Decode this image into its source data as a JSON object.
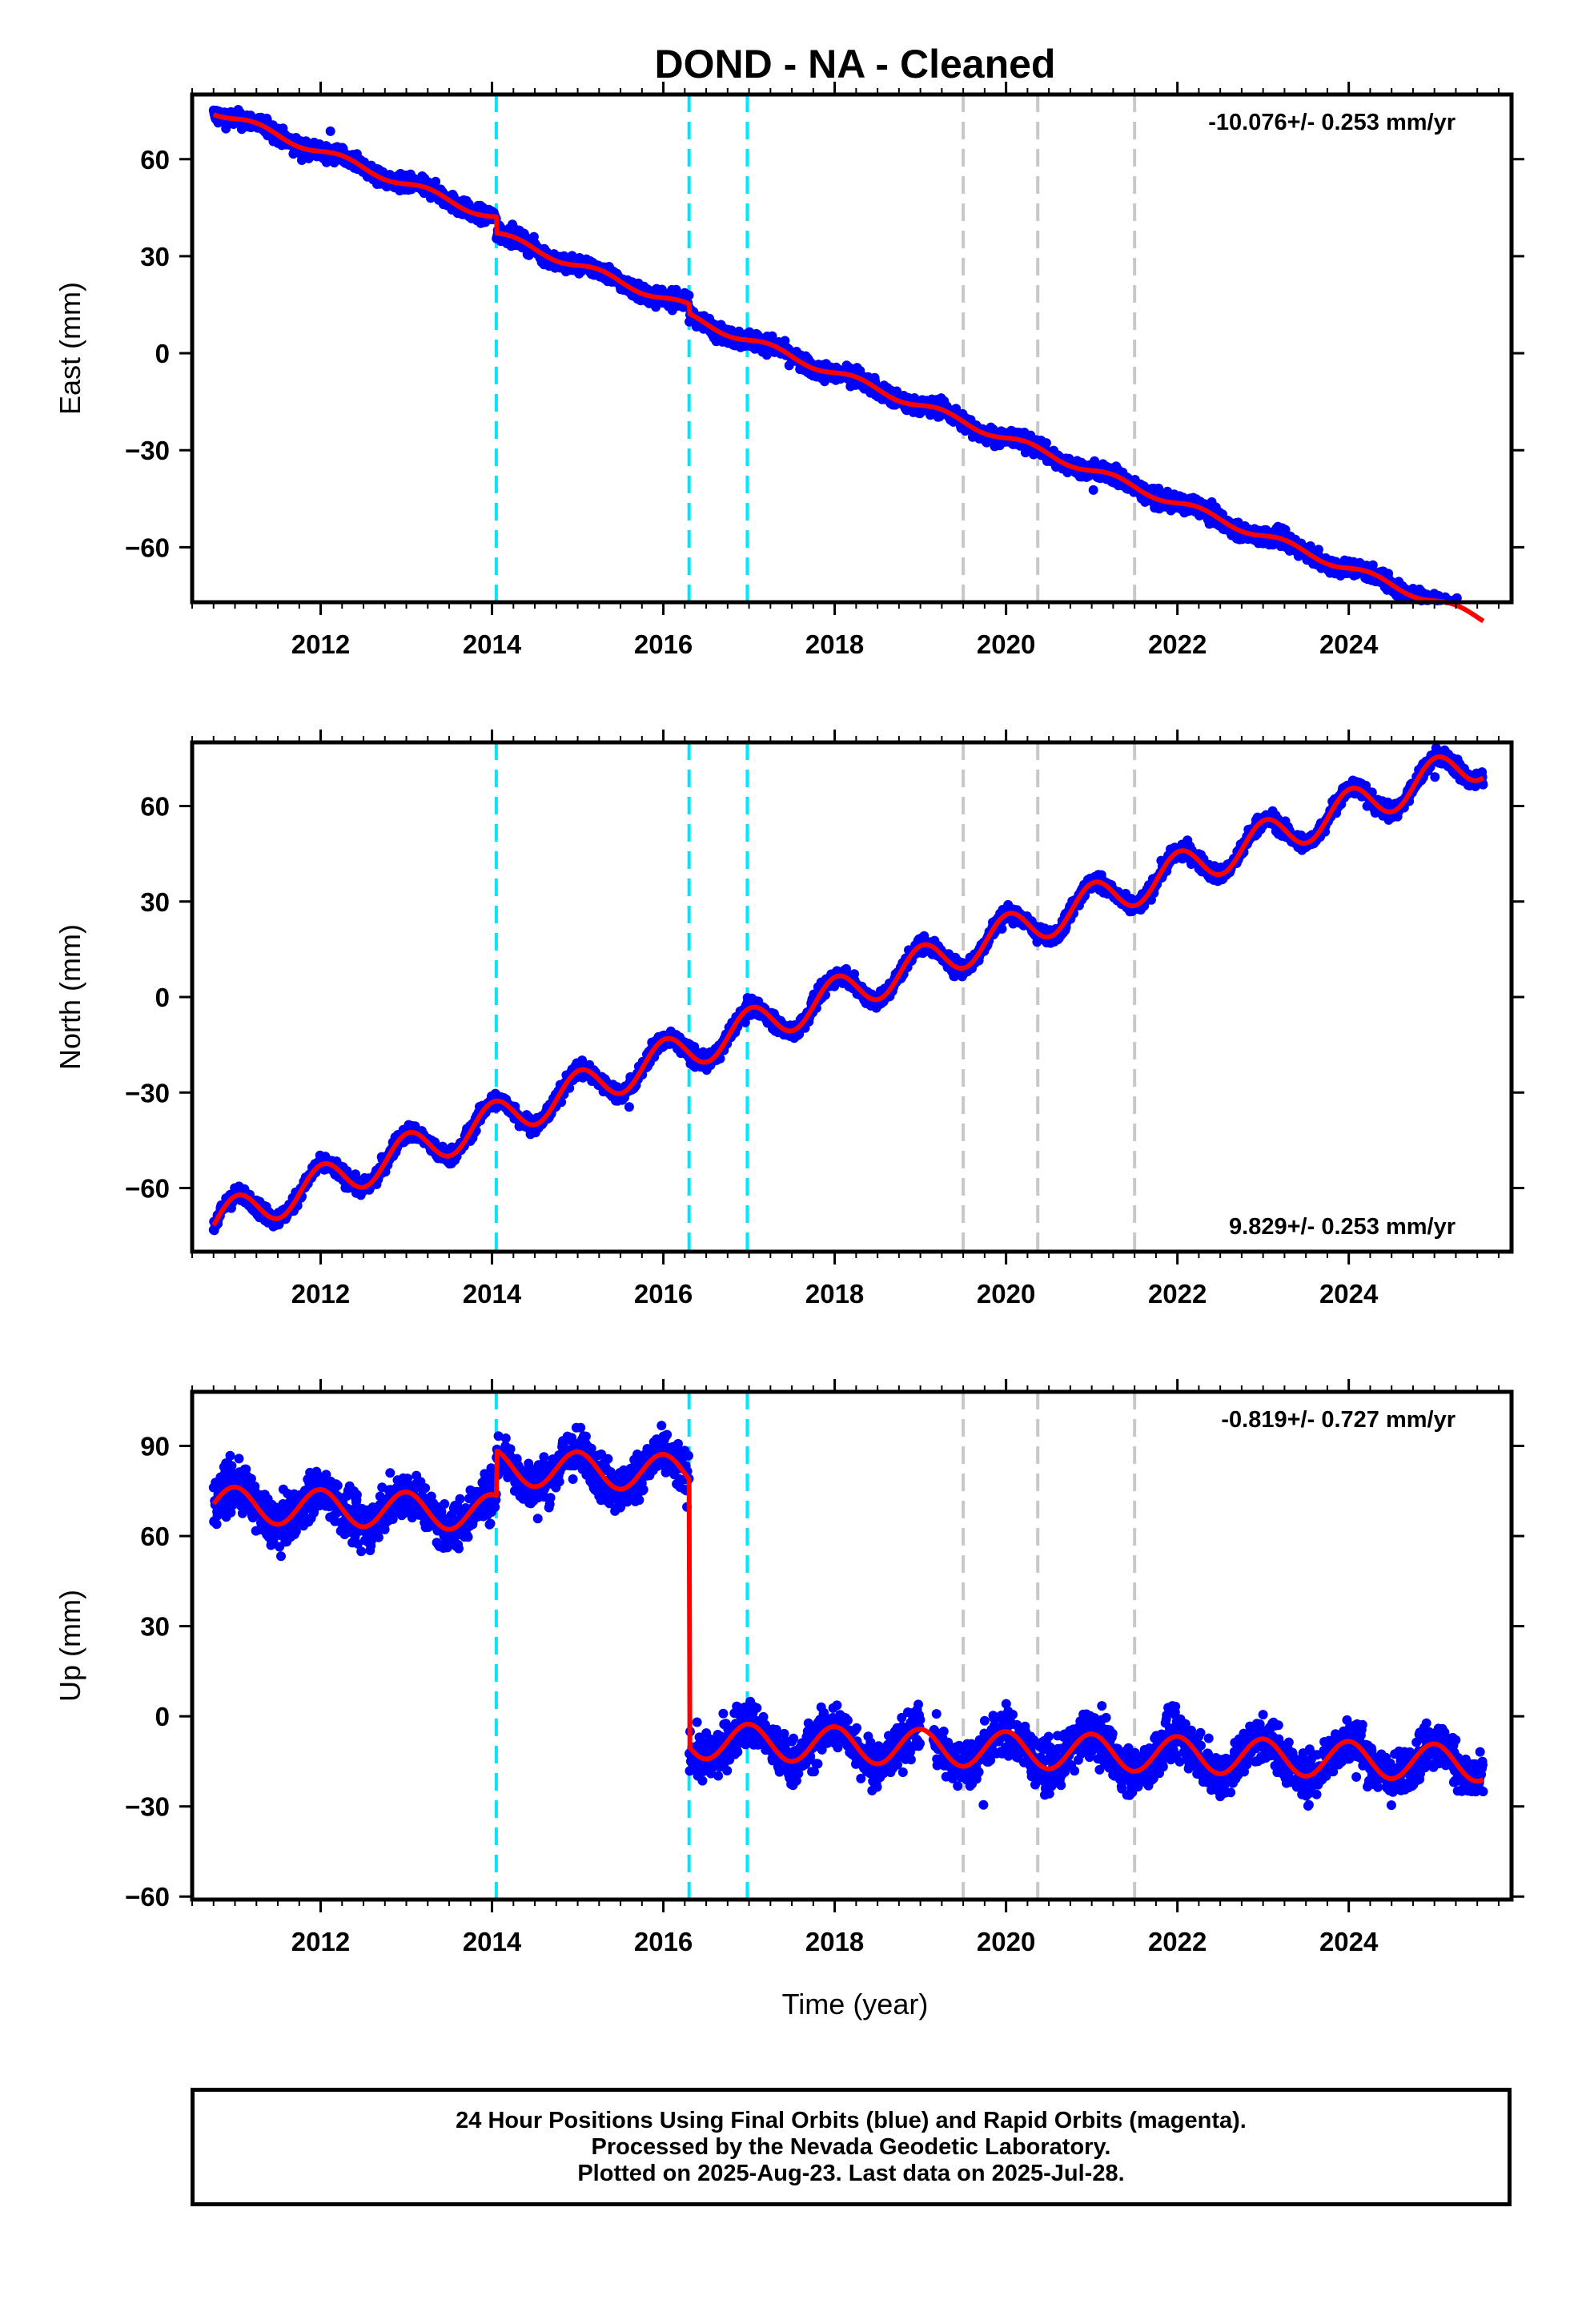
{
  "chart_data": {
    "type": "scatter",
    "title": "DOND  - NA - Cleaned",
    "xlabel": "Time (year)",
    "xlim": [
      2010.5,
      2025.9
    ],
    "x_ticks": [
      "2012",
      "2014",
      "2016",
      "2018",
      "2020",
      "2022",
      "2024"
    ],
    "x_tick_values": [
      2012,
      2014,
      2016,
      2018,
      2020,
      2022,
      2024
    ],
    "data_start": 2010.75,
    "data_end": 2025.57,
    "colors": {
      "data_points": "#0000ff",
      "model_fit": "#ff0000",
      "vertical_markers_cyan": "#00e5ff",
      "vertical_markers_gray": "#c8c8c8",
      "frame": "#000000"
    },
    "vertical_markers_cyan": [
      2014.05,
      2016.3,
      2016.98
    ],
    "vertical_markers_gray": [
      2019.5,
      2020.37,
      2021.5
    ],
    "panels": [
      {
        "id": "east",
        "ylabel": "East (mm)",
        "ylim": [
          -77,
          80
        ],
        "y_ticks": [
          "60",
          "30",
          "0",
          "−30",
          "−60"
        ],
        "y_tick_values": [
          60,
          30,
          0,
          -30,
          -60
        ],
        "rate_text": "-10.076+/- 0.253 mm/yr",
        "rate_position": "top-right",
        "model": {
          "offset": 75,
          "slope": -10.076,
          "seasonal_amp": 1.2,
          "seasonal_phase": 0,
          "steps": [
            {
              "t": 2014.05,
              "dy": -5
            },
            {
              "t": 2016.3,
              "dy": -3
            }
          ]
        },
        "noise": 1.8
      },
      {
        "id": "north",
        "ylabel": "North (mm)",
        "ylim": [
          -80,
          80
        ],
        "y_ticks": [
          "60",
          "30",
          "0",
          "−30",
          "−60"
        ],
        "y_tick_values": [
          60,
          30,
          0,
          -30,
          -60
        ],
        "rate_text": "9.829+/- 0.253 mm/yr",
        "rate_position": "bottom-right",
        "model": {
          "offset": -71,
          "slope": 9.829,
          "seasonal_amp": 6,
          "seasonal_phase": 1.45,
          "steps": []
        },
        "noise": 1.8
      },
      {
        "id": "up",
        "ylabel": "Up (mm)",
        "ylim": [
          -61,
          108
        ],
        "y_ticks": [
          "90",
          "60",
          "30",
          "0",
          "−30",
          "−60"
        ],
        "y_tick_values": [
          90,
          60,
          30,
          0,
          -30,
          -60
        ],
        "rate_text": "-0.819+/- 0.727 mm/yr",
        "rate_position": "top-right",
        "model": {
          "offset": 70.5,
          "slope": -0.819,
          "seasonal_amp": 6,
          "seasonal_phase": 1.6,
          "steps": [
            {
              "t": 2014.05,
              "dy": 15
            },
            {
              "t": 2016.3,
              "dy": -89
            }
          ]
        },
        "noise": 5.5
      }
    ]
  },
  "footer": {
    "line1": "24 Hour Positions Using Final Orbits (blue) and Rapid Orbits (magenta).",
    "line2": "Processed by the Nevada Geodetic Laboratory.",
    "line3": "Plotted on 2025-Aug-23. Last data on 2025-Jul-28."
  }
}
